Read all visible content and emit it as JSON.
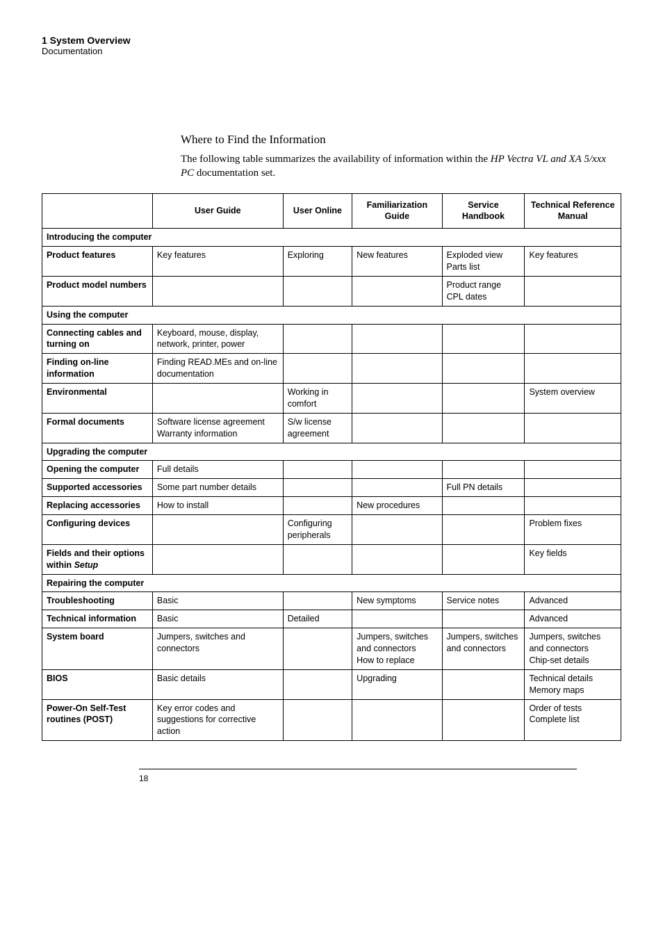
{
  "header": {
    "chapter": "1  System Overview",
    "subhead": "Documentation"
  },
  "section": {
    "title": "Where to Find the Information",
    "desc_plain_1": "The following table summarizes the availability of information within the ",
    "desc_italic": "HP Vectra VL and XA 5/xxx PC",
    "desc_plain_2": " documentation set."
  },
  "columns": [
    "",
    "User Guide",
    "User Online",
    "Familiarization Guide",
    "Service Handbook",
    "Technical Reference Manual"
  ],
  "sections": {
    "intro": "Introducing the computer",
    "using": "Using the computer",
    "upgrading": "Upgrading the computer",
    "repairing": "Repairing the computer"
  },
  "rows": {
    "product_features": {
      "label": "Product features",
      "c1": "Key features",
      "c2": "Exploring",
      "c3": "New features",
      "c4": "Exploded view\nParts list",
      "c5": "Key features"
    },
    "product_model": {
      "label": "Product model numbers",
      "c1": "",
      "c2": "",
      "c3": "",
      "c4": "Product range\nCPL dates",
      "c5": ""
    },
    "connecting": {
      "label": "Connecting cables and turning on",
      "c1": "Keyboard, mouse, display, network, printer, power",
      "c2": "",
      "c3": "",
      "c4": "",
      "c5": ""
    },
    "finding": {
      "label": "Finding on-line information",
      "c1": "Finding READ.MEs and on-line documentation",
      "c2": "",
      "c3": "",
      "c4": "",
      "c5": ""
    },
    "environmental": {
      "label": "Environmental",
      "c1": "",
      "c2": "Working in comfort",
      "c3": "",
      "c4": "",
      "c5": "System overview"
    },
    "formal": {
      "label": "Formal documents",
      "c1": "Software license agreement\nWarranty information",
      "c2": "S/w license agreement",
      "c3": "",
      "c4": "",
      "c5": ""
    },
    "opening": {
      "label": "Opening the computer",
      "c1": "Full details",
      "c2": "",
      "c3": "",
      "c4": "",
      "c5": ""
    },
    "supported": {
      "label": "Supported accessories",
      "c1": "Some part number details",
      "c2": "",
      "c3": "",
      "c4": "Full PN details",
      "c5": ""
    },
    "replacing": {
      "label": "Replacing accessories",
      "c1": "How to install",
      "c2": "",
      "c3": "New procedures",
      "c4": "",
      "c5": ""
    },
    "configuring": {
      "label": "Configuring devices",
      "c1": "",
      "c2": "Configuring peripherals",
      "c3": "",
      "c4": "",
      "c5": "Problem fixes"
    },
    "fields": {
      "label_plain": "Fields and their options within ",
      "label_italic": "Setup",
      "c1": "",
      "c2": "",
      "c3": "",
      "c4": "",
      "c5": "Key fields"
    },
    "troubleshooting": {
      "label": "Troubleshooting",
      "c1": "Basic",
      "c2": "",
      "c3": "New symptoms",
      "c4": "Service notes",
      "c5": "Advanced"
    },
    "techinfo": {
      "label": "Technical information",
      "c1": "Basic",
      "c2": "Detailed",
      "c3": "",
      "c4": "",
      "c5": "Advanced"
    },
    "sysboard": {
      "label": "System board",
      "c1": "Jumpers, switches and connectors",
      "c2": "",
      "c3": "Jumpers, switches and connectors\nHow to replace",
      "c4": "Jumpers, switches and connectors",
      "c5": "Jumpers, switches and connectors\nChip-set details"
    },
    "bios": {
      "label": "BIOS",
      "c1": "Basic details",
      "c2": "",
      "c3": "Upgrading",
      "c4": "",
      "c5": "Technical details\nMemory maps"
    },
    "post": {
      "label": "Power-On Self-Test routines (POST)",
      "c1": "Key error codes and suggestions for corrective action",
      "c2": "",
      "c3": "",
      "c4": "",
      "c5": "Order of tests\nComplete list"
    }
  },
  "footer": {
    "page": "18"
  }
}
